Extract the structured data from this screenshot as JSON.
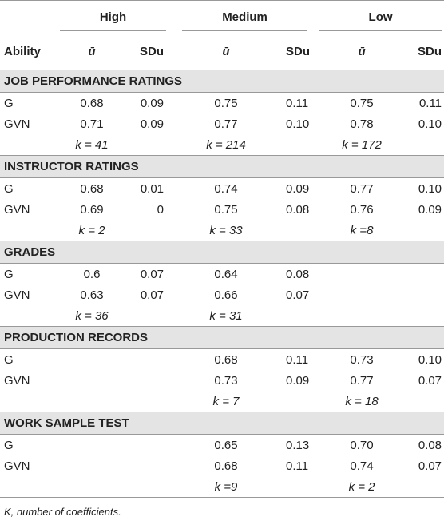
{
  "header": {
    "groups": [
      "High",
      "Medium",
      "Low"
    ],
    "columns": [
      "Ability",
      "ū",
      "SDu",
      "ū",
      "SDu",
      "ū",
      "SDu"
    ]
  },
  "sections": [
    {
      "title": "JOB PERFORMANCE RATINGS",
      "rows": [
        [
          "G",
          "0.68",
          "0.09",
          "0.75",
          "0.11",
          "0.75",
          "0.11"
        ],
        [
          "GVN",
          "0.71",
          "0.09",
          "0.77",
          "0.10",
          "0.78",
          "0.10"
        ]
      ],
      "k": [
        "k = 41",
        "k = 214",
        "k = 172"
      ]
    },
    {
      "title": "INSTRUCTOR RATINGS",
      "rows": [
        [
          "G",
          "0.68",
          "0.01",
          "0.74",
          "0.09",
          "0.77",
          "0.10"
        ],
        [
          "GVN",
          "0.69",
          "0",
          "0.75",
          "0.08",
          "0.76",
          "0.09"
        ]
      ],
      "k": [
        "k = 2",
        "k = 33",
        "k =8"
      ]
    },
    {
      "title": "GRADES",
      "rows": [
        [
          "G",
          "0.6",
          "0.07",
          "0.64",
          "0.08",
          null,
          null
        ],
        [
          "GVN",
          "0.63",
          "0.07",
          "0.66",
          "0.07",
          null,
          null
        ]
      ],
      "k": [
        "k = 36",
        "k = 31",
        null
      ]
    },
    {
      "title": "PRODUCTION RECORDS",
      "rows": [
        [
          "G",
          null,
          null,
          "0.68",
          "0.11",
          "0.73",
          "0.10"
        ],
        [
          "GVN",
          null,
          null,
          "0.73",
          "0.09",
          "0.77",
          "0.07"
        ]
      ],
      "k": [
        null,
        "k = 7",
        "k = 18"
      ]
    },
    {
      "title": "WORK SAMPLE TEST",
      "rows": [
        [
          "G",
          null,
          null,
          "0.65",
          "0.13",
          "0.70",
          "0.08"
        ],
        [
          "GVN",
          null,
          null,
          "0.68",
          "0.11",
          "0.74",
          "0.07"
        ]
      ],
      "k": [
        null,
        "k =9",
        "k = 2"
      ]
    }
  ],
  "footnote": "K, number of coefficients."
}
